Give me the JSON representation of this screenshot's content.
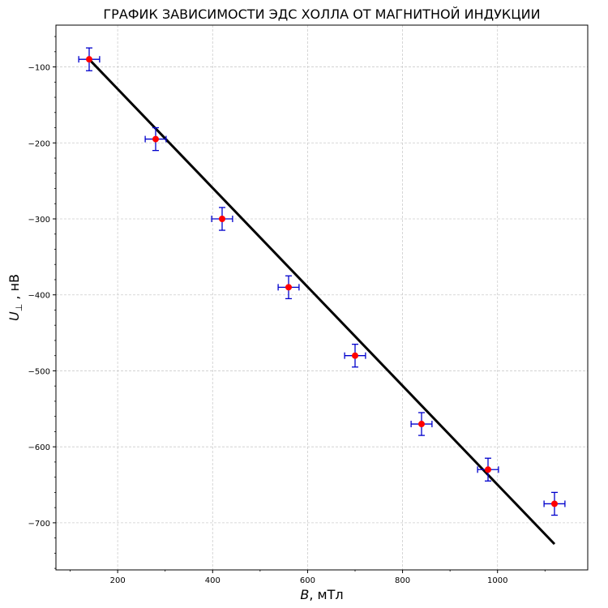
{
  "chart_data": {
    "type": "scatter",
    "title": "ГРАФИК ЗАВИСИМОСТИ ЭДС ХОЛЛА ОТ МАГНИТНОЙ ИНДУКЦИИ",
    "xlabel": {
      "symbol": "B",
      "rest": ", мТл"
    },
    "ylabel": {
      "symbol": "U",
      "subscript": "⊥",
      "rest": " , нВ"
    },
    "xlim": [
      70,
      1190
    ],
    "ylim": [
      -762,
      -45
    ],
    "xticks": [
      200,
      400,
      600,
      800,
      1000
    ],
    "yticks": [
      -100,
      -200,
      -300,
      -400,
      -500,
      -600,
      -700
    ],
    "xtick_labels": [
      "200",
      "400",
      "600",
      "800",
      "1000"
    ],
    "ytick_labels": [
      "−100",
      "−200",
      "−300",
      "−400",
      "−500",
      "−600",
      "−700"
    ],
    "grid": true,
    "points": [
      {
        "x": 140,
        "y": -90,
        "xerr": 22,
        "yerr": 15
      },
      {
        "x": 280,
        "y": -195,
        "xerr": 22,
        "yerr": 15
      },
      {
        "x": 420,
        "y": -300,
        "xerr": 22,
        "yerr": 15
      },
      {
        "x": 560,
        "y": -390,
        "xerr": 22,
        "yerr": 15
      },
      {
        "x": 700,
        "y": -480,
        "xerr": 22,
        "yerr": 15
      },
      {
        "x": 840,
        "y": -570,
        "xerr": 22,
        "yerr": 15
      },
      {
        "x": 980,
        "y": -630,
        "xerr": 22,
        "yerr": 15
      },
      {
        "x": 1120,
        "y": -675,
        "xerr": 22,
        "yerr": 15
      }
    ],
    "fit_line": {
      "x": [
        140,
        1120
      ],
      "y": [
        -90,
        -728
      ]
    },
    "colors": {
      "points": "#ff0000",
      "errorbars": "#0000cc",
      "fit": "#000000",
      "grid": "#cccccc"
    }
  }
}
